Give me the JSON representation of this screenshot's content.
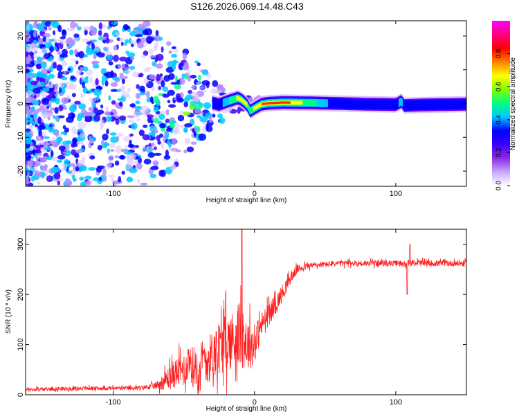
{
  "title": "S126.2026.069.14.48.C43",
  "chart_data": [
    {
      "type": "heatmap",
      "name": "spectrogram",
      "xlabel": "Height of straight line (km)",
      "ylabel": "Frequency (Hz)",
      "xlim": [
        -162,
        150
      ],
      "ylim": [
        -24.5,
        24.5
      ],
      "xticks": [
        -100,
        0,
        100
      ],
      "xtick_labels": [
        "-100",
        "0",
        "100"
      ],
      "yticks": [
        -20,
        -10,
        0,
        10,
        20
      ],
      "ytick_labels": [
        "-20",
        "-10",
        "0",
        "10",
        "20"
      ],
      "grid": false,
      "ridge": {
        "x": [
          -30,
          -25,
          -20,
          -15,
          -12,
          -10,
          -8,
          -5,
          -3,
          0,
          5,
          10,
          20,
          40,
          60,
          80,
          100,
          104,
          106,
          120,
          150
        ],
        "frequency": [
          0.2,
          -0.3,
          0.5,
          1.2,
          1.6,
          1.3,
          0.7,
          -0.5,
          -2.2,
          -1.4,
          -0.2,
          0.1,
          0.3,
          0.2,
          0.0,
          -0.2,
          -0.3,
          0.6,
          -0.6,
          -0.4,
          -0.2
        ],
        "amplitude": [
          0.3,
          0.35,
          0.45,
          0.6,
          0.7,
          0.75,
          0.8,
          0.65,
          0.55,
          0.7,
          0.8,
          0.9,
          0.9,
          0.55,
          0.3,
          0.3,
          0.3,
          0.5,
          0.3,
          0.3,
          0.3
        ]
      }
    },
    {
      "type": "colorbar",
      "name": "amplitude-colorbar",
      "label": "Normalized spectral amplitude",
      "range": [
        0.0,
        1.0
      ],
      "ticks": [
        0.0,
        0.2,
        0.4,
        0.6,
        0.8
      ],
      "tick_labels": [
        "0.0",
        "0.2",
        "0.4",
        "0.6",
        "0.8"
      ],
      "colormap": [
        "#ffffff",
        "#c9a6ff",
        "#8a2be2",
        "#3a00ff",
        "#0000ff",
        "#00c8ff",
        "#00ff80",
        "#80ff00",
        "#ffff00",
        "#ff8000",
        "#ff0000",
        "#ff0080",
        "#ff00ff"
      ]
    },
    {
      "type": "line",
      "name": "snr-plot",
      "xlabel": "Height of straight line (km)",
      "ylabel": "SNR (10 * v/v)",
      "xlim": [
        -162,
        150
      ],
      "ylim": [
        0,
        330
      ],
      "xticks": [
        -100,
        0,
        100
      ],
      "xtick_labels": [
        "-100",
        "0",
        "100"
      ],
      "yticks": [
        0,
        100,
        200,
        300
      ],
      "ytick_labels": [
        "0",
        "100",
        "200",
        "300"
      ],
      "grid": false,
      "series": [
        {
          "name": "SNR",
          "color": "#ff2020",
          "x": [
            -162,
            -150,
            -140,
            -130,
            -120,
            -110,
            -100,
            -90,
            -80,
            -70,
            -65,
            -60,
            -55,
            -50,
            -45,
            -40,
            -35,
            -30,
            -25,
            -20,
            -15,
            -10,
            -5,
            0,
            5,
            10,
            15,
            20,
            25,
            30,
            35,
            40,
            50,
            60,
            70,
            80,
            90,
            100,
            105,
            110,
            115,
            120,
            130,
            140,
            150
          ],
          "y": [
            10,
            11,
            12,
            12,
            13,
            13,
            13,
            13,
            14,
            18,
            25,
            35,
            45,
            50,
            55,
            60,
            70,
            80,
            95,
            105,
            110,
            120,
            100,
            100,
            140,
            160,
            180,
            205,
            230,
            250,
            255,
            258,
            260,
            262,
            262,
            262,
            262,
            262,
            262,
            262,
            263,
            262,
            262,
            262,
            262
          ],
          "spread": [
            8,
            8,
            8,
            8,
            8,
            8,
            8,
            8,
            8,
            14,
            30,
            50,
            60,
            70,
            80,
            85,
            90,
            95,
            110,
            120,
            120,
            130,
            110,
            80,
            50,
            45,
            40,
            35,
            25,
            18,
            14,
            12,
            12,
            12,
            12,
            12,
            12,
            12,
            12,
            12,
            12,
            12,
            12,
            12,
            12
          ]
        }
      ],
      "annotations": [
        {
          "x": -9,
          "y": 330,
          "note": "spike"
        },
        {
          "x": 110,
          "y": 300,
          "note": "spike"
        },
        {
          "x": 108,
          "y": 200,
          "note": "dip"
        }
      ]
    }
  ]
}
